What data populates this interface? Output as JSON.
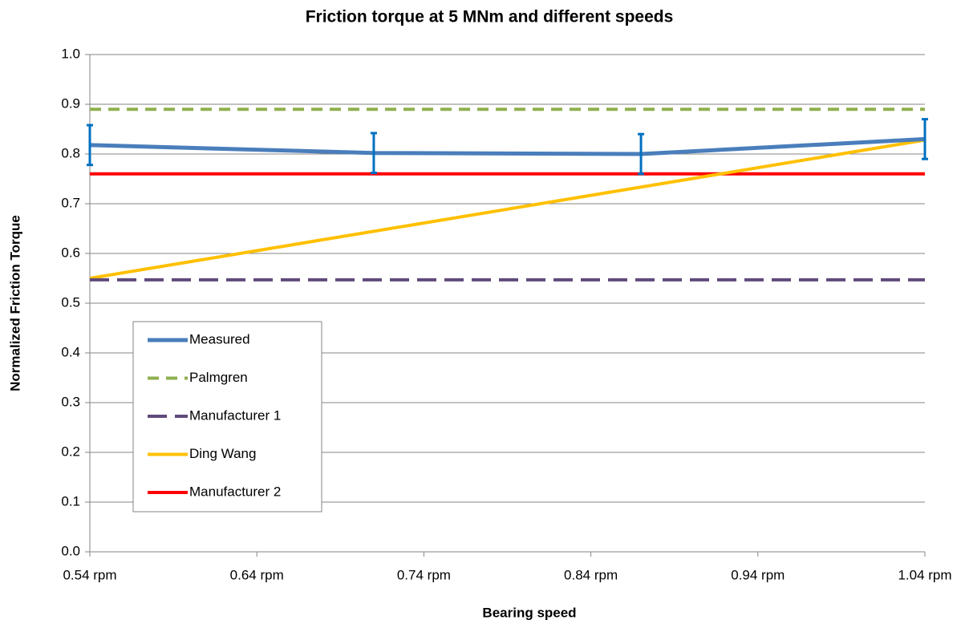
{
  "chart_data": {
    "type": "line",
    "title": "Friction torque at 5 MNm and different speeds",
    "xlabel": "Bearing speed",
    "ylabel": "Normalized Friction Torque",
    "xlim": [
      0.54,
      1.04
    ],
    "xticks": [
      {
        "value": 0.54,
        "label": "0.54 rpm"
      },
      {
        "value": 0.64,
        "label": "0.64 rpm"
      },
      {
        "value": 0.74,
        "label": "0.74 rpm"
      },
      {
        "value": 0.84,
        "label": "0.84 rpm"
      },
      {
        "value": 0.94,
        "label": "0.94 rpm"
      },
      {
        "value": 1.04,
        "label": "1.04 rpm"
      }
    ],
    "ylim": [
      0,
      1
    ],
    "yticks": [
      {
        "value": 0,
        "label": "0.0"
      },
      0.1,
      0.2,
      0.3,
      0.4,
      0.5,
      0.6,
      0.7,
      0.8,
      0.9,
      {
        "value": 1,
        "label": "1.0"
      }
    ],
    "grid": true,
    "legend": "lower left",
    "series": [
      {
        "name": "Measured",
        "color": "#4a7ebb",
        "linestyle": "solid",
        "x": [
          0.54,
          0.71,
          0.87,
          1.04
        ],
        "values": [
          0.818,
          0.802,
          0.8,
          0.83
        ],
        "errors": [
          0.04,
          0.04,
          0.04,
          0.04
        ],
        "error_color": "#0070c0"
      },
      {
        "name": "Palmgren",
        "color": "#8fb04f",
        "linestyle": "dashed",
        "x": [
          0.54,
          1.04
        ],
        "values": [
          0.89,
          0.89
        ]
      },
      {
        "name": "Manufacturer 1",
        "color": "#604a7b",
        "linestyle": "long-dash",
        "x": [
          0.54,
          1.04
        ],
        "values": [
          0.547,
          0.547
        ]
      },
      {
        "name": "Ding Wang",
        "color": "#ffc000",
        "linestyle": "solid",
        "x": [
          0.54,
          1.04
        ],
        "values": [
          0.55,
          0.828
        ]
      },
      {
        "name": "Manufacturer 2",
        "color": "#ff0000",
        "linestyle": "solid",
        "x": [
          0.54,
          1.04
        ],
        "values": [
          0.76,
          0.76
        ]
      }
    ]
  }
}
